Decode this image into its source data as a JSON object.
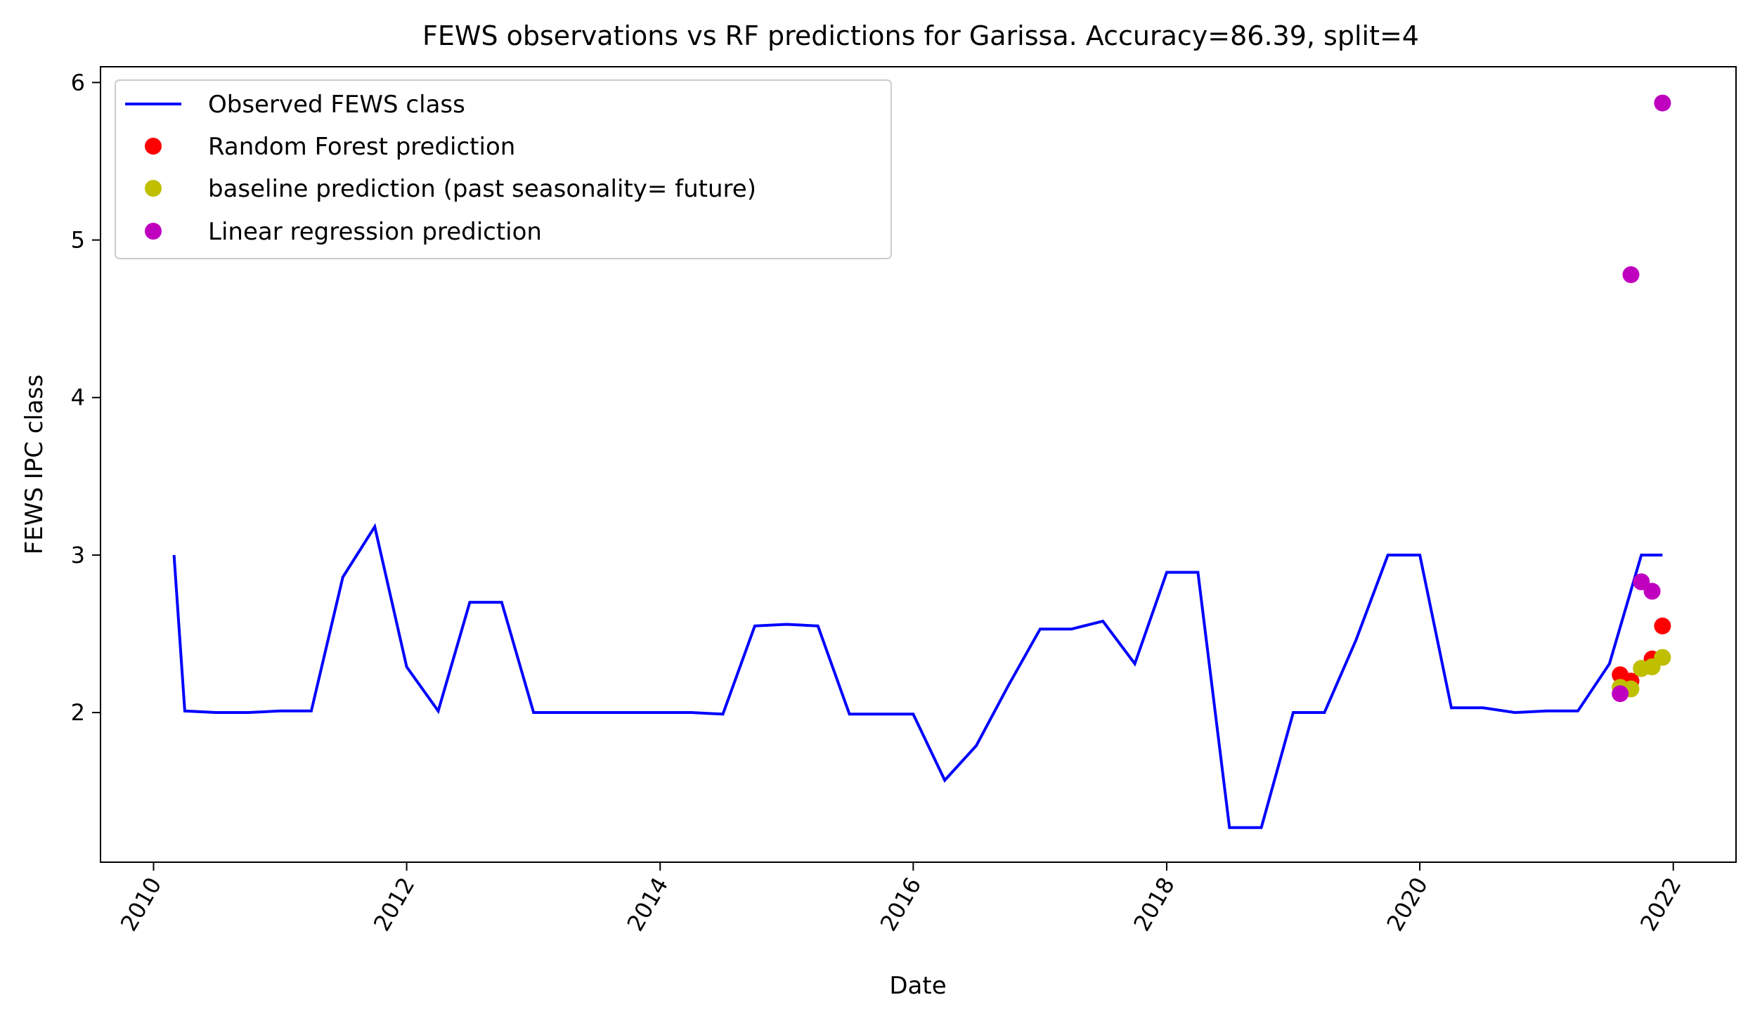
{
  "chart_data": {
    "type": "line",
    "title": "FEWS observations vs RF predictions for Garissa. Accuracy=86.39, split=4",
    "xlabel": "Date",
    "ylabel": "FEWS IPC class",
    "x_axis_type": "date",
    "xlim": [
      "2009-08-01",
      "2022-07-01"
    ],
    "ylim": [
      1.05,
      6.1
    ],
    "x_ticks": [
      "2010",
      "2012",
      "2014",
      "2016",
      "2018",
      "2020",
      "2022"
    ],
    "y_ticks": [
      "2",
      "3",
      "4",
      "5",
      "6"
    ],
    "x_tick_rotation": 60,
    "grid": false,
    "legend_position": "upper-left",
    "series": [
      {
        "name": "Observed FEWS class",
        "kind": "line",
        "color": "#0000ff",
        "x": [
          "2010-03-01",
          "2010-04-01",
          "2010-07-01",
          "2010-10-01",
          "2011-01-01",
          "2011-04-01",
          "2011-07-01",
          "2011-10-01",
          "2012-01-01",
          "2012-04-01",
          "2012-07-01",
          "2012-10-01",
          "2013-01-01",
          "2013-04-01",
          "2013-07-01",
          "2013-10-01",
          "2014-01-01",
          "2014-04-01",
          "2014-07-01",
          "2014-10-01",
          "2015-01-01",
          "2015-04-01",
          "2015-07-01",
          "2015-10-01",
          "2016-01-01",
          "2016-04-01",
          "2016-07-01",
          "2016-10-01",
          "2017-01-01",
          "2017-04-01",
          "2017-07-01",
          "2017-10-01",
          "2018-01-01",
          "2018-04-01",
          "2018-07-01",
          "2018-10-01",
          "2019-01-01",
          "2019-04-01",
          "2019-07-01",
          "2019-10-01",
          "2020-01-01",
          "2020-04-01",
          "2020-07-01",
          "2020-10-01",
          "2021-01-01",
          "2021-04-01",
          "2021-07-01",
          "2021-10-01",
          "2021-12-01"
        ],
        "y": [
          3.0,
          2.01,
          2.0,
          2.0,
          2.01,
          2.01,
          2.86,
          3.18,
          2.29,
          2.01,
          2.7,
          2.7,
          2.0,
          2.0,
          2.0,
          2.0,
          2.0,
          2.0,
          1.99,
          2.55,
          2.56,
          2.55,
          1.99,
          1.99,
          1.99,
          1.57,
          1.79,
          2.17,
          2.53,
          2.53,
          2.58,
          2.31,
          2.89,
          2.89,
          1.27,
          1.27,
          2.0,
          2.0,
          2.46,
          3.0,
          3.0,
          2.03,
          2.03,
          2.0,
          2.01,
          2.01,
          2.31,
          3.0,
          3.0
        ]
      },
      {
        "name": "Random Forest prediction",
        "kind": "scatter",
        "color": "#ff0000",
        "x": [
          "2021-08-01",
          "2021-09-01",
          "2021-10-01",
          "2021-11-01",
          "2021-12-01"
        ],
        "y": [
          2.24,
          2.2,
          2.28,
          2.34,
          2.55
        ]
      },
      {
        "name": "baseline prediction (past seasonality= future)",
        "kind": "scatter",
        "color": "#bfbf00",
        "x": [
          "2021-08-01",
          "2021-09-01",
          "2021-10-01",
          "2021-11-01",
          "2021-12-01"
        ],
        "y": [
          2.16,
          2.15,
          2.28,
          2.29,
          2.35
        ]
      },
      {
        "name": "Linear regression prediction",
        "kind": "scatter",
        "color": "#bf00bf",
        "x": [
          "2021-08-01",
          "2021-09-01",
          "2021-10-01",
          "2021-11-01",
          "2021-12-01"
        ],
        "y": [
          2.12,
          4.78,
          2.83,
          2.77,
          5.87
        ]
      }
    ]
  }
}
